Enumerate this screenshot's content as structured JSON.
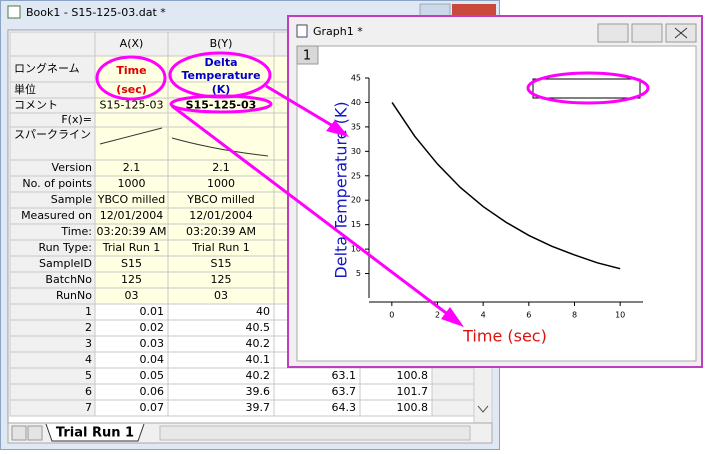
{
  "workbook": {
    "title": "Book1 - S15-125-03.dat *",
    "columns": [
      "A(X)",
      "B(Y)"
    ],
    "meta_rows": [
      {
        "label": "ロングネーム",
        "cells": [
          "Time",
          "Delta Temperature"
        ]
      },
      {
        "label": "単位",
        "cells": [
          "(sec)",
          "(K)"
        ]
      },
      {
        "label": "コメント",
        "cells": [
          "S15-125-03",
          "S15-125-03"
        ]
      },
      {
        "label": "F(x)=",
        "cells": []
      },
      {
        "label": "スパークライン",
        "cells": []
      },
      {
        "label": "Version",
        "cells": [
          "2.1",
          "2.1"
        ]
      },
      {
        "label": "No. of points",
        "cells": [
          "1000",
          "1000"
        ]
      },
      {
        "label": "Sample",
        "cells": [
          "YBCO milled",
          "YBCO milled"
        ]
      },
      {
        "label": "Measured on",
        "cells": [
          "12/01/2004",
          "12/01/2004"
        ]
      },
      {
        "label": "Time:",
        "cells": [
          "03:20:39 AM",
          "03:20:39 AM"
        ]
      },
      {
        "label": "Run Type:",
        "cells": [
          "Trial Run 1",
          "Trial Run 1"
        ]
      },
      {
        "label": "SampleID",
        "cells": [
          "S15",
          "S15"
        ]
      },
      {
        "label": "BatchNo",
        "cells": [
          "125",
          "125"
        ]
      },
      {
        "label": "RunNo",
        "cells": [
          "03",
          "03"
        ]
      }
    ],
    "data_rows": [
      {
        "label": "1",
        "cells": [
          "0.01",
          "40"
        ]
      },
      {
        "label": "2",
        "cells": [
          "0.02",
          "40.5"
        ]
      },
      {
        "label": "3",
        "cells": [
          "0.03",
          "40.2"
        ]
      },
      {
        "label": "4",
        "cells": [
          "0.04",
          "40.1"
        ]
      },
      {
        "label": "5",
        "cells": [
          "0.05",
          "40.2",
          "63.1",
          "100.8"
        ]
      },
      {
        "label": "6",
        "cells": [
          "0.06",
          "39.6",
          "63.7",
          "101.7"
        ]
      },
      {
        "label": "7",
        "cells": [
          "0.07",
          "39.7",
          "64.3",
          "100.8"
        ]
      }
    ],
    "sheet_tab": "Trial Run 1"
  },
  "graph": {
    "title": "Graph1 *",
    "layer": "1",
    "chart": {
      "type": "line",
      "x_label": "Time (sec)",
      "y_label": "Delta Temperature (K)",
      "x": [
        0.01,
        1,
        2,
        3,
        4,
        5,
        6,
        7,
        8,
        9,
        10
      ],
      "series": [
        {
          "name": "S15-125-03",
          "color": "#000000",
          "values": [
            40,
            33.1,
            27.4,
            22.6,
            18.7,
            15.5,
            12.8,
            10.6,
            8.8,
            7.2,
            6
          ]
        }
      ],
      "xlim": [
        -1,
        11
      ],
      "xticks": [
        0,
        2,
        4,
        6,
        8,
        10
      ],
      "ylim": [
        0,
        45
      ],
      "yticks": [
        5,
        10,
        15,
        20,
        25,
        30,
        35,
        40,
        45
      ]
    }
  }
}
